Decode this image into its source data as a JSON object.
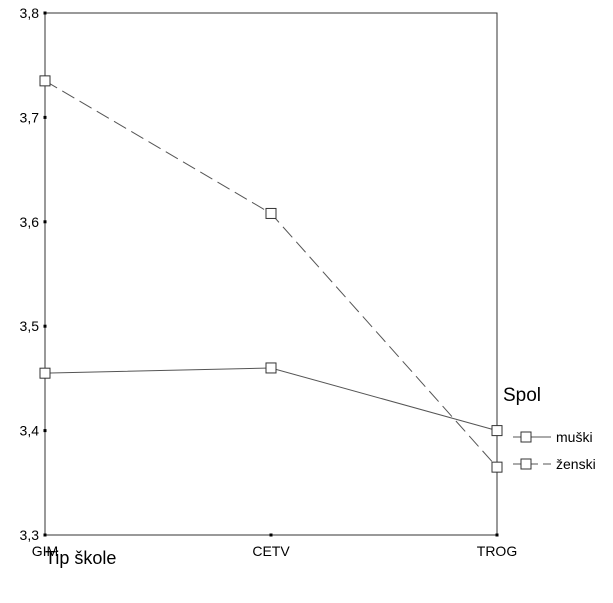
{
  "chart_data": {
    "type": "line",
    "xlabel": "Tip škole",
    "ylabel": "",
    "categories": [
      "GIM",
      "CETV",
      "TROG"
    ],
    "ylim": [
      3.3,
      3.8
    ],
    "yticks": [
      "3,3",
      "3,4",
      "3,5",
      "3,6",
      "3,7",
      "3,8"
    ],
    "ytick_values": [
      3.3,
      3.4,
      3.5,
      3.6,
      3.7,
      3.8
    ],
    "grid": false,
    "legend": {
      "title": "Spol",
      "placement": "right"
    },
    "series": [
      {
        "name": "muški",
        "values": [
          3.455,
          3.46,
          3.4
        ],
        "line_style": "solid",
        "marker": "square-open",
        "color": "#555555"
      },
      {
        "name": "ženski",
        "values": [
          3.735,
          3.608,
          3.365
        ],
        "line_style": "dashed",
        "marker": "square-open",
        "color": "#555555"
      }
    ]
  }
}
